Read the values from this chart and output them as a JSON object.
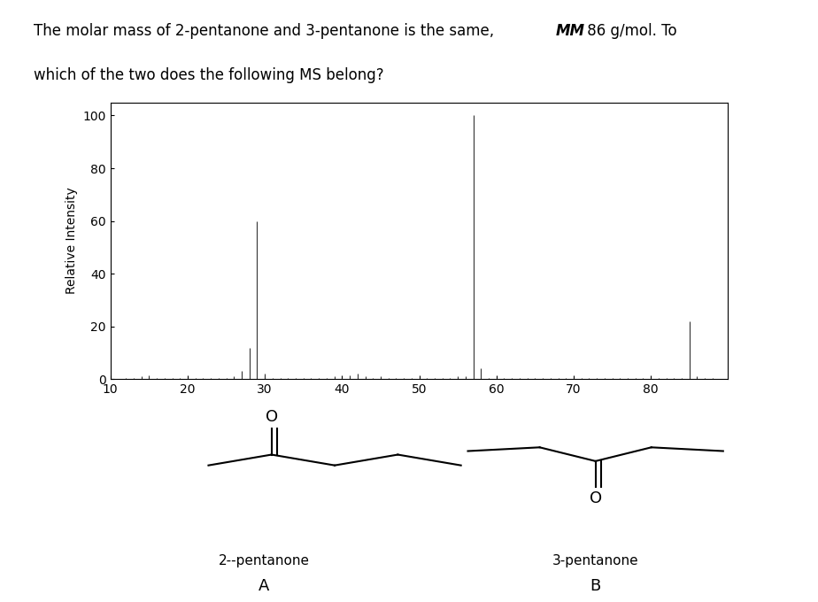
{
  "ylabel": "Relative Intensity",
  "xlim": [
    10,
    90
  ],
  "ylim": [
    0,
    105
  ],
  "xticks": [
    10,
    20,
    30,
    40,
    50,
    60,
    70,
    80
  ],
  "yticks": [
    0,
    20,
    40,
    60,
    80,
    100
  ],
  "peaks": [
    [
      12,
      0.5
    ],
    [
      13,
      0.5
    ],
    [
      14,
      1.0
    ],
    [
      15,
      1.5
    ],
    [
      16,
      0.5
    ],
    [
      17,
      0.5
    ],
    [
      18,
      0.5
    ],
    [
      19,
      0.5
    ],
    [
      20,
      0.5
    ],
    [
      21,
      0.5
    ],
    [
      22,
      0.5
    ],
    [
      23,
      0.5
    ],
    [
      24,
      0.5
    ],
    [
      25,
      0.5
    ],
    [
      26,
      1.0
    ],
    [
      27,
      3.0
    ],
    [
      28,
      12.0
    ],
    [
      29,
      60.0
    ],
    [
      30,
      2.0
    ],
    [
      31,
      0.5
    ],
    [
      32,
      0.5
    ],
    [
      33,
      0.5
    ],
    [
      34,
      0.5
    ],
    [
      35,
      0.5
    ],
    [
      36,
      0.5
    ],
    [
      37,
      0.5
    ],
    [
      38,
      0.5
    ],
    [
      39,
      1.0
    ],
    [
      40,
      0.5
    ],
    [
      41,
      1.5
    ],
    [
      42,
      2.0
    ],
    [
      43,
      1.0
    ],
    [
      44,
      0.5
    ],
    [
      45,
      1.0
    ],
    [
      46,
      0.5
    ],
    [
      47,
      0.5
    ],
    [
      48,
      0.5
    ],
    [
      49,
      0.5
    ],
    [
      50,
      0.5
    ],
    [
      51,
      0.5
    ],
    [
      52,
      0.5
    ],
    [
      53,
      0.5
    ],
    [
      54,
      0.5
    ],
    [
      55,
      1.0
    ],
    [
      56,
      1.0
    ],
    [
      57,
      100.0
    ],
    [
      58,
      4.0
    ],
    [
      59,
      0.5
    ],
    [
      60,
      0.5
    ],
    [
      61,
      0.5
    ],
    [
      62,
      0.5
    ],
    [
      63,
      0.5
    ],
    [
      64,
      0.5
    ],
    [
      65,
      0.5
    ],
    [
      66,
      0.5
    ],
    [
      67,
      0.5
    ],
    [
      68,
      0.5
    ],
    [
      69,
      0.5
    ],
    [
      70,
      0.5
    ],
    [
      71,
      0.5
    ],
    [
      72,
      0.5
    ],
    [
      73,
      0.5
    ],
    [
      74,
      0.5
    ],
    [
      75,
      0.5
    ],
    [
      76,
      0.5
    ],
    [
      77,
      0.5
    ],
    [
      78,
      0.5
    ],
    [
      79,
      0.5
    ],
    [
      80,
      0.5
    ],
    [
      81,
      0.5
    ],
    [
      82,
      0.5
    ],
    [
      83,
      0.5
    ],
    [
      84,
      0.5
    ],
    [
      85,
      22.0
    ],
    [
      86,
      1.0
    ],
    [
      87,
      0.5
    ],
    [
      88,
      0.5
    ]
  ],
  "bar_color": "#333333",
  "bg_color": "#ffffff",
  "label_A": "A",
  "label_B": "B",
  "label_2pentanone": "2--pentanone",
  "label_3pentanone": "3-pentanone",
  "title_normal1": "The molar mass of 2-pentanone and 3-pentanone is the same, ",
  "title_italic": "MM",
  "title_normal2": " 86 g/mol. To",
  "title_line2": "which of the two does the following MS belong?"
}
